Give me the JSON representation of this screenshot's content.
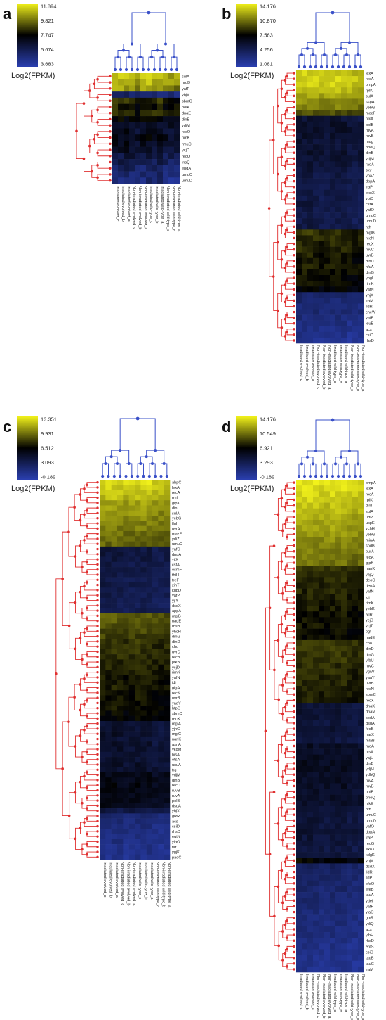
{
  "colors": {
    "low": "#2a3fb0",
    "mid": "#000000",
    "high": "#f2f21a",
    "row_tree": "#e03030",
    "col_tree": "#3a50c8"
  },
  "colorbar_title": "Log2(FPKM)",
  "panel_labels": [
    "a",
    "b",
    "c",
    "d"
  ],
  "columns": [
    "Irradiated evolved_c",
    "Irradiated evolved_b",
    "Irradiated evolved_a",
    "Non-irradiated evolved_c",
    "Non-irradiated evolved_b",
    "Non-irradiated evolved_a",
    "Irradiated wild-type_c",
    "Irradiated wild-type_b",
    "Irradiated wild-type_a",
    "Non-irradiated wild-type_c",
    "Non-irradiated wild-type_b",
    "Non-irradiated wild-type_a"
  ],
  "chart_data": [
    {
      "type": "heatmap",
      "panel": "a",
      "colorbar": {
        "title": "Log2(FPKM)",
        "ticks": [
          "11.894",
          "9.821",
          "7.747",
          "5.674",
          "3.683"
        ],
        "range": [
          3.683,
          11.894
        ]
      },
      "rows": [
        "sulA",
        "nrdD",
        "yafP",
        "yhjX",
        "sbmC",
        "holA",
        "dnaE",
        "dinB",
        "ydjM",
        "recO",
        "rimK",
        "rmuC",
        "ycjD",
        "recQ",
        "insQ",
        "endA",
        "umuC",
        "umuD"
      ],
      "row_levels": [
        11.0,
        10.6,
        10.2,
        5.2,
        8.4,
        8.0,
        8.2,
        7.4,
        7.0,
        6.8,
        7.2,
        6.9,
        6.6,
        6.2,
        5.8,
        5.4,
        5.2,
        5.0
      ]
    },
    {
      "type": "heatmap",
      "panel": "b",
      "colorbar": {
        "title": "Log2(FPKM)",
        "ticks": [
          "14.176",
          "10.870",
          "7.563",
          "4.256",
          "1.081"
        ],
        "range": [
          1.081,
          14.176
        ]
      },
      "rows": [
        "lexA",
        "recA",
        "ompA",
        "rplK",
        "sulA",
        "sspA",
        "yebG",
        "modF",
        "nikA",
        "polB",
        "ruvA",
        "ruvB",
        "mug",
        "phoQ",
        "dinB",
        "ydjM",
        "radA",
        "sxy",
        "ybaZ",
        "dppA",
        "iraP",
        "exoX",
        "ybjD",
        "cstA",
        "yafO",
        "umuC",
        "umuD",
        "nth",
        "mglB",
        "recN",
        "recX",
        "ruvC",
        "uvrB",
        "dinD",
        "nfuA",
        "dinG",
        "ybgI",
        "rimK",
        "yafN",
        "yhjX",
        "iraM",
        "lldR",
        "cheW",
        "yafP",
        "leuB",
        "acs",
        "csiD",
        "rhsD"
      ],
      "row_levels": [
        13.0,
        13.2,
        13.0,
        12.6,
        12.0,
        11.4,
        11.0,
        9.6,
        5.6,
        5.8,
        6.0,
        5.8,
        5.6,
        5.6,
        5.8,
        5.6,
        5.4,
        5.2,
        5.0,
        5.0,
        5.0,
        5.0,
        5.0,
        5.2,
        5.0,
        4.8,
        4.8,
        5.0,
        8.8,
        8.6,
        8.4,
        8.6,
        8.2,
        8.0,
        8.2,
        8.0,
        7.8,
        7.6,
        7.4,
        3.6,
        3.4,
        3.2,
        3.4,
        3.0,
        2.8,
        2.6,
        2.4,
        2.2
      ]
    },
    {
      "type": "heatmap",
      "panel": "c",
      "colorbar": {
        "title": "Log2(FPKM)",
        "ticks": [
          "13.351",
          "9.931",
          "6.512",
          "3.093",
          "-0.189"
        ],
        "range": [
          -0.189,
          13.351
        ]
      },
      "rows": [
        "ahpC",
        "lexA",
        "recA",
        "rmf",
        "glpK",
        "dinI",
        "sulA",
        "yebG",
        "flgI",
        "uvrA",
        "mazF",
        "ydiZ",
        "umuC",
        "yafO",
        "dppA",
        "yjiX",
        "cstA",
        "osmF",
        "thiH",
        "treF",
        "zinT",
        "kdpD",
        "yafP",
        "yjiY",
        "dsdX",
        "appA",
        "mglB",
        "nagE",
        "rbsB",
        "yhcH",
        "dinG",
        "dinD",
        "cho",
        "uvrD",
        "recB",
        "pfkB",
        "ycjD",
        "rimK",
        "yafN",
        "idi",
        "glgA",
        "recN",
        "uvrB",
        "yaaY",
        "htpG",
        "sbmC",
        "recX",
        "mglA",
        "yjhC",
        "mglC",
        "nanK",
        "asnA",
        "ykgM",
        "hisA",
        "otsA",
        "uxuA",
        "trg",
        "ydjM",
        "dinB",
        "recD",
        "ruvB",
        "ruvA",
        "polB",
        "dsdA",
        "yhjX",
        "glxR",
        "acs",
        "csiD",
        "rhsD",
        "eutN",
        "yiaO",
        "tar",
        "ygjK",
        "paoC"
      ],
      "row_levels": [
        12.6,
        12.2,
        12.0,
        11.6,
        11.0,
        10.8,
        10.6,
        10.4,
        10.0,
        9.8,
        9.6,
        9.4,
        9.2,
        4.0,
        4.2,
        4.0,
        3.8,
        4.0,
        3.8,
        3.6,
        3.8,
        3.6,
        3.6,
        3.4,
        3.4,
        3.6,
        9.0,
        8.8,
        8.6,
        8.4,
        8.2,
        8.0,
        7.8,
        7.8,
        7.6,
        7.6,
        7.4,
        7.4,
        7.2,
        7.2,
        7.2,
        7.0,
        7.0,
        6.8,
        6.8,
        6.6,
        6.4,
        4.6,
        4.6,
        4.8,
        4.6,
        4.6,
        4.8,
        4.6,
        4.6,
        4.8,
        4.8,
        5.6,
        5.8,
        5.8,
        5.8,
        5.6,
        5.6,
        5.4,
        4.0,
        2.2,
        2.0,
        1.8,
        1.8,
        1.6,
        1.6,
        1.4,
        1.4,
        1.2
      ]
    },
    {
      "type": "heatmap",
      "panel": "d",
      "colorbar": {
        "title": "Log2(FPKM)",
        "ticks": [
          "14.176",
          "10.549",
          "6.921",
          "3.293",
          "-0.189"
        ],
        "range": [
          -0.189,
          14.176
        ]
      },
      "rows": [
        "ompA",
        "lexA",
        "recA",
        "rplK",
        "dinI",
        "sulA",
        "udP",
        "uspE",
        "ychH",
        "yebG",
        "miaA",
        "sodB",
        "purA",
        "feoA",
        "glpK",
        "nanK",
        "yajQ",
        "deoC",
        "deoA",
        "yafN",
        "idi",
        "rimK",
        "yebK",
        "allR",
        "ycjD",
        "ycjT",
        "ogt",
        "nadE",
        "cho",
        "dinD",
        "dinG",
        "yfbU",
        "ruvC",
        "ygiW",
        "yaaY",
        "uvrB",
        "recN",
        "sbmC",
        "recX",
        "dhaK",
        "dhaM",
        "sodA",
        "dsdA",
        "feoB",
        "narX",
        "mlaB",
        "radA",
        "hisA",
        "yajL",
        "dinB",
        "ydjM",
        "ydhQ",
        "ruvA",
        "ruvB",
        "polB",
        "phoQ",
        "nikE",
        "nth",
        "umuC",
        "umuD",
        "yafO",
        "dppA",
        "iraP",
        "recG",
        "exoX",
        "kdgK",
        "yhjX",
        "dsdX",
        "lldR",
        "lldP",
        "efeO",
        "efeB",
        "tauA",
        "ydel",
        "yafP",
        "yiaO",
        "glxR",
        "ydiQ",
        "acs",
        "yibH",
        "rhsD",
        "entS",
        "csiD",
        "tauB",
        "tauC",
        "iraM"
      ],
      "row_levels": [
        13.6,
        13.4,
        13.2,
        13.0,
        12.6,
        12.4,
        12.0,
        11.8,
        11.6,
        11.4,
        11.0,
        10.8,
        10.6,
        10.4,
        10.2,
        8.4,
        8.2,
        8.0,
        8.0,
        7.8,
        7.8,
        7.6,
        7.6,
        7.4,
        7.4,
        7.4,
        7.2,
        7.2,
        8.6,
        8.6,
        8.4,
        8.4,
        8.2,
        8.2,
        8.2,
        8.0,
        8.0,
        7.8,
        7.8,
        4.6,
        4.8,
        4.6,
        4.6,
        4.8,
        4.6,
        4.4,
        5.4,
        5.4,
        5.6,
        5.6,
        5.6,
        5.4,
        5.4,
        5.4,
        5.2,
        5.2,
        5.2,
        4.8,
        4.6,
        4.6,
        4.6,
        4.8,
        4.6,
        4.6,
        4.4,
        4.6,
        6.8,
        3.0,
        2.8,
        2.8,
        2.6,
        2.6,
        2.4,
        2.4,
        2.2,
        2.2,
        2.0,
        2.0,
        1.8,
        1.8,
        1.6,
        1.6,
        1.4,
        1.4,
        1.2,
        1.2
      ]
    }
  ]
}
